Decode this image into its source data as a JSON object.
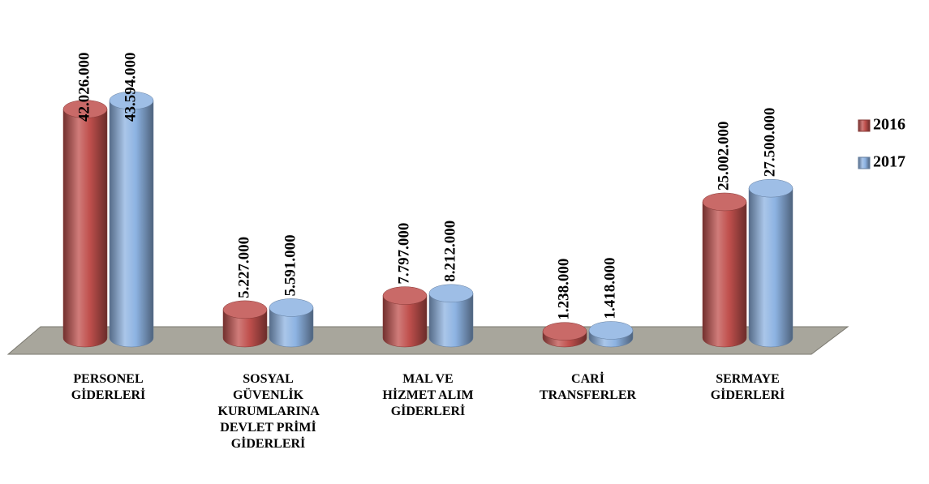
{
  "chart_data": {
    "type": "bar",
    "categories": [
      "PERSONEL GİDERLERİ",
      "SOSYAL GÜVENLİK KURUMLARINA DEVLET PRİMİ GİDERLERİ",
      "MAL VE HİZMET ALIM GİDERLERİ",
      "CARİ TRANSFERLER",
      "SERMAYE GİDERLERİ"
    ],
    "series": [
      {
        "name": "2016",
        "color": "#c0504d",
        "values": [
          42026000,
          5227000,
          7797000,
          1238000,
          25002000
        ],
        "value_labels": [
          "42.026.000",
          "5.227.000",
          "7.797.000",
          "1.238.000",
          "25.002.000"
        ]
      },
      {
        "name": "2017",
        "color": "#8db3e2",
        "values": [
          43594000,
          5591000,
          8212000,
          1418000,
          27500000
        ],
        "value_labels": [
          "43.594.000",
          "5.591.000",
          "8.212.000",
          "1.418.000",
          "27.500.000"
        ]
      }
    ],
    "legend": "right"
  }
}
